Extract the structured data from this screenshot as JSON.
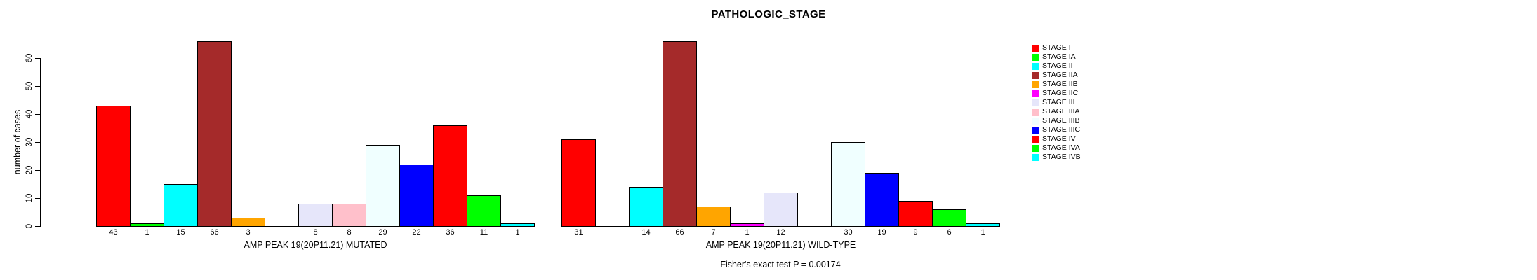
{
  "chart_data": {
    "type": "bar",
    "title": "PATHOLOGIC_STAGE",
    "ylabel": "number of cases",
    "ylim": [
      0,
      60
    ],
    "yticks": [
      0,
      10,
      20,
      30,
      40,
      50,
      60
    ],
    "grid": false,
    "legend_position": "right",
    "bar_outline_color": "#000000",
    "categories": [
      "STAGE I",
      "STAGE IA",
      "STAGE II",
      "STAGE IIA",
      "STAGE IIB",
      "STAGE IIC",
      "STAGE III",
      "STAGE IIIA",
      "STAGE IIIB",
      "STAGE IIIC",
      "STAGE IV",
      "STAGE IVA",
      "STAGE IVB"
    ],
    "colors": [
      "#FF0000",
      "#00FF00",
      "#00FFFF",
      "#A52A2A",
      "#FFA500",
      "#FF00FF",
      "#E6E6FA",
      "#FFC0CB",
      "#F0FFFF",
      "#0000FF",
      "#FF0000",
      "#00FF00",
      "#00FFFF"
    ],
    "series": [
      {
        "name": "AMP PEAK 19(20P11.21) MUTATED",
        "values": [
          43,
          1,
          15,
          66,
          3,
          0,
          8,
          8,
          29,
          22,
          36,
          11,
          1
        ]
      },
      {
        "name": "AMP PEAK 19(20P11.21) WILD-TYPE",
        "values": [
          31,
          0,
          14,
          66,
          7,
          1,
          12,
          0,
          30,
          19,
          9,
          6,
          1
        ]
      }
    ],
    "annotation": "Fisher's exact test P = 0.00174"
  }
}
